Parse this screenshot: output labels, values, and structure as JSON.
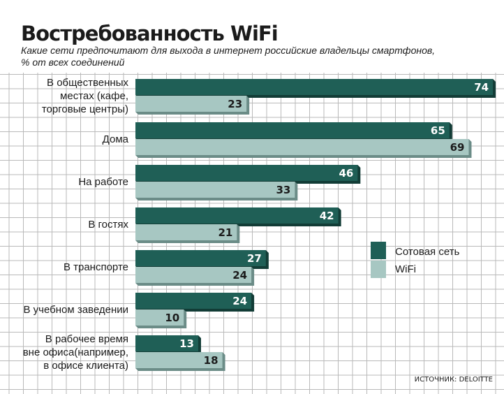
{
  "colors": {
    "series_dark": "#1f5f56",
    "series_dark_edge": "#123c36",
    "series_light": "#a7c7c2",
    "series_light_edge": "#6b8c87",
    "grid": "#b9b9b9",
    "header_bg": "#ffffff"
  },
  "chart_data": {
    "type": "bar",
    "orientation": "horizontal",
    "title": "Востребованность WiFi",
    "subtitle_lines": [
      "Какие сети предпочитают для выхода в интернет российские владельцы смартфонов,",
      "% от всех соединений"
    ],
    "categories": [
      [
        "В общественных",
        "местах (кафе,",
        "торговые центры)"
      ],
      [
        "Дома"
      ],
      [
        "На работе"
      ],
      [
        "В гостях"
      ],
      [
        "В транспорте"
      ],
      [
        "В учебном заведении"
      ],
      [
        "В рабочее время",
        "вне офиса(например,",
        "в офисе клиента)"
      ]
    ],
    "series": [
      {
        "name": "Сотовая сеть",
        "values": [
          74,
          65,
          46,
          42,
          27,
          24,
          13
        ]
      },
      {
        "name": "WiFi",
        "values": [
          23,
          69,
          33,
          21,
          24,
          10,
          18
        ]
      }
    ],
    "xlim": [
      0,
      75
    ],
    "grid": true,
    "legend_position": "right",
    "source": "ИСТОЧНИК: DELOITTE"
  }
}
